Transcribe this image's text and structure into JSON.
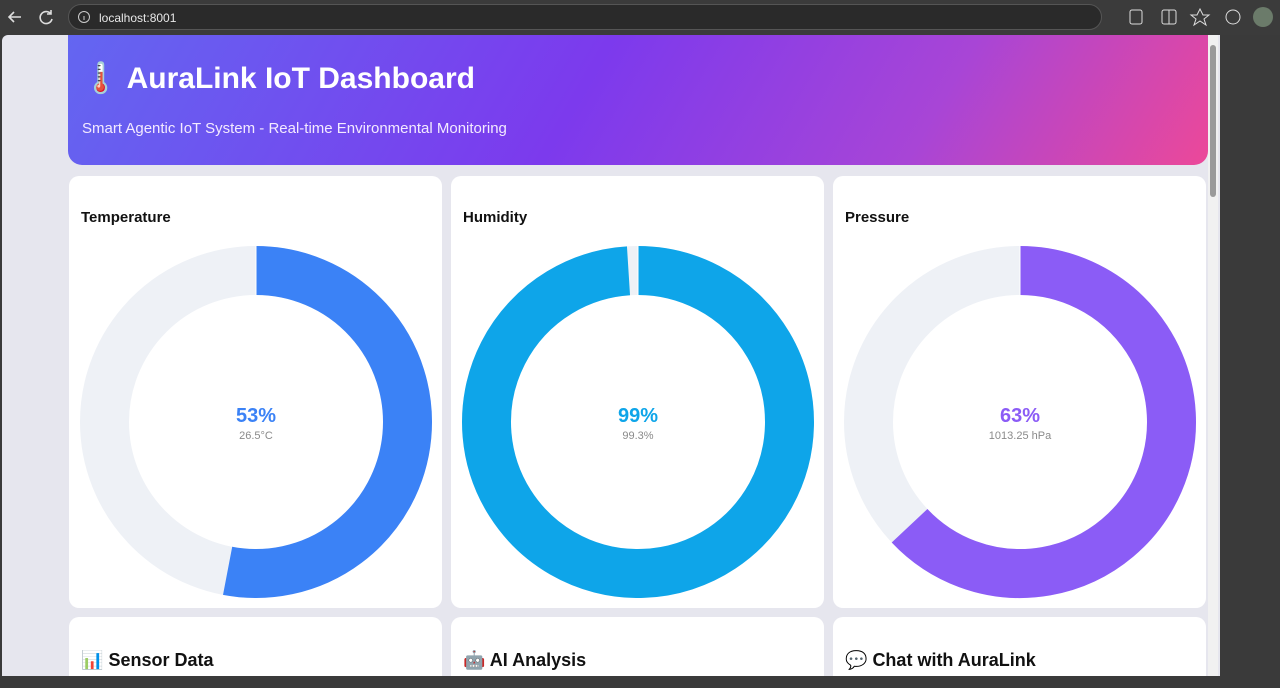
{
  "browser": {
    "url": "localhost:8001"
  },
  "header": {
    "icon": "🌡️",
    "title": "AuraLink IoT Dashboard",
    "subtitle": "Smart Agentic IoT System - Real-time Environmental Monitoring"
  },
  "gauges": [
    {
      "title": "Temperature",
      "value": 53,
      "value_label": "53%",
      "reading": "26.5°C",
      "color": "#3b82f6"
    },
    {
      "title": "Humidity",
      "value": 99,
      "value_label": "99%",
      "reading": "99.3%",
      "color": "#0ea5e9"
    },
    {
      "title": "Pressure",
      "value": 63,
      "value_label": "63%",
      "reading": "1013.25 hPa",
      "color": "#8b5cf6"
    }
  ],
  "panels": [
    {
      "icon": "📊",
      "title": "Sensor Data"
    },
    {
      "icon": "🤖",
      "title": "AI Analysis"
    },
    {
      "icon": "💬",
      "title": "Chat with AuraLink"
    }
  ]
}
